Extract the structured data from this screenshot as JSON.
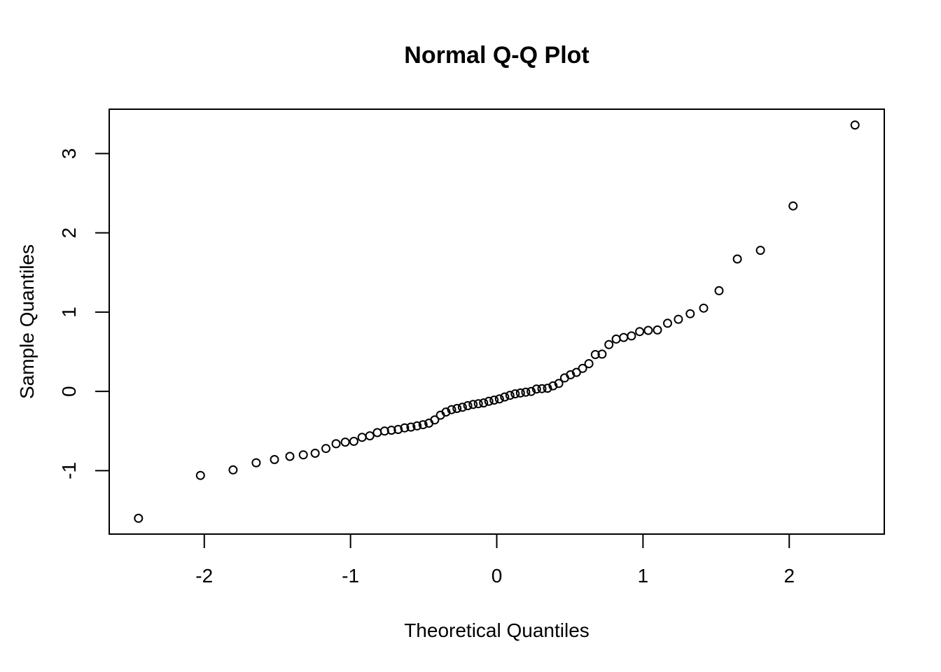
{
  "figure": {
    "background_color": "#ffffff",
    "foreground_color": "#000000"
  },
  "chart_data": {
    "type": "scatter",
    "title": "Normal Q-Q Plot",
    "xlabel": "Theoretical Quantiles",
    "ylabel": "Sample Quantiles",
    "xlim": [
      -2.65,
      2.65
    ],
    "ylim": [
      -1.8,
      3.56
    ],
    "x_ticks": [
      -2,
      -1,
      0,
      1,
      2
    ],
    "y_ticks": [
      -1,
      0,
      1,
      2,
      3
    ],
    "grid": false,
    "legend": null,
    "marker": "open-circle",
    "n_points": 70,
    "points": [
      [
        -2.45,
        -1.6
      ],
      [
        -2.026,
        -1.06
      ],
      [
        -1.803,
        -0.99
      ],
      [
        -1.645,
        -0.9
      ],
      [
        -1.52,
        -0.86
      ],
      [
        -1.415,
        -0.82
      ],
      [
        -1.323,
        -0.8
      ],
      [
        -1.242,
        -0.78
      ],
      [
        -1.168,
        -0.72
      ],
      [
        -1.099,
        -0.66
      ],
      [
        -1.036,
        -0.64
      ],
      [
        -0.977,
        -0.63
      ],
      [
        -0.921,
        -0.58
      ],
      [
        -0.868,
        -0.56
      ],
      [
        -0.817,
        -0.52
      ],
      [
        -0.767,
        -0.5
      ],
      [
        -0.72,
        -0.49
      ],
      [
        -0.674,
        -0.48
      ],
      [
        -0.63,
        -0.46
      ],
      [
        -0.587,
        -0.45
      ],
      [
        -0.545,
        -0.435
      ],
      [
        -0.504,
        -0.42
      ],
      [
        -0.464,
        -0.4
      ],
      [
        -0.424,
        -0.36
      ],
      [
        -0.385,
        -0.3
      ],
      [
        -0.347,
        -0.26
      ],
      [
        -0.309,
        -0.23
      ],
      [
        -0.272,
        -0.215
      ],
      [
        -0.235,
        -0.2
      ],
      [
        -0.198,
        -0.18
      ],
      [
        -0.162,
        -0.165
      ],
      [
        -0.126,
        -0.155
      ],
      [
        -0.09,
        -0.145
      ],
      [
        -0.054,
        -0.125
      ],
      [
        -0.018,
        -0.11
      ],
      [
        0.018,
        -0.095
      ],
      [
        0.054,
        -0.07
      ],
      [
        0.09,
        -0.05
      ],
      [
        0.126,
        -0.03
      ],
      [
        0.162,
        -0.02
      ],
      [
        0.198,
        -0.01
      ],
      [
        0.235,
        0.0
      ],
      [
        0.272,
        0.03
      ],
      [
        0.309,
        0.035
      ],
      [
        0.347,
        0.04
      ],
      [
        0.385,
        0.07
      ],
      [
        0.424,
        0.1
      ],
      [
        0.464,
        0.17
      ],
      [
        0.504,
        0.21
      ],
      [
        0.545,
        0.24
      ],
      [
        0.587,
        0.29
      ],
      [
        0.63,
        0.35
      ],
      [
        0.674,
        0.465
      ],
      [
        0.72,
        0.47
      ],
      [
        0.767,
        0.59
      ],
      [
        0.817,
        0.66
      ],
      [
        0.868,
        0.68
      ],
      [
        0.921,
        0.7
      ],
      [
        0.977,
        0.755
      ],
      [
        1.036,
        0.77
      ],
      [
        1.099,
        0.775
      ],
      [
        1.168,
        0.86
      ],
      [
        1.242,
        0.91
      ],
      [
        1.323,
        0.98
      ],
      [
        1.415,
        1.05
      ],
      [
        1.52,
        1.27
      ],
      [
        1.645,
        1.67
      ],
      [
        1.803,
        1.78
      ],
      [
        2.026,
        2.34
      ],
      [
        2.45,
        3.36
      ]
    ]
  }
}
